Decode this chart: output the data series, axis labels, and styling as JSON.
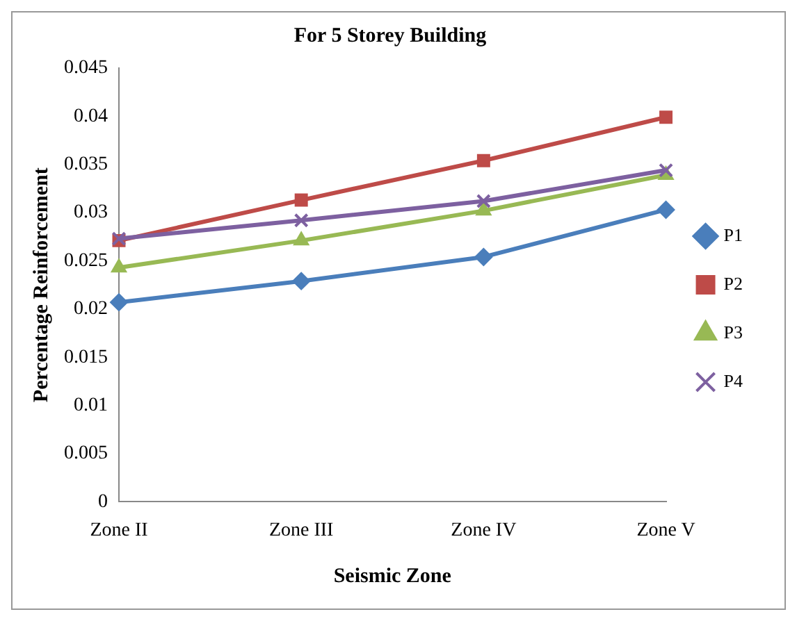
{
  "chart_data": {
    "type": "line",
    "title": "For 5 Storey Building",
    "xlabel": "Seismic Zone",
    "ylabel": "Percentage Reinforcement",
    "categories": [
      "Zone II",
      "Zone III",
      "Zone IV",
      "Zone V"
    ],
    "series": [
      {
        "name": "P1",
        "color": "#4a7ebb",
        "marker": "diamond",
        "values": [
          0.0207,
          0.0229,
          0.0254,
          0.0303
        ]
      },
      {
        "name": "P2",
        "color": "#be4b48",
        "marker": "square",
        "values": [
          0.0271,
          0.0313,
          0.0354,
          0.0399
        ]
      },
      {
        "name": "P3",
        "color": "#98b954",
        "marker": "triangle",
        "values": [
          0.0243,
          0.0271,
          0.0302,
          0.0339
        ]
      },
      {
        "name": "P4",
        "color": "#7d60a0",
        "marker": "cross",
        "values": [
          0.0273,
          0.0292,
          0.0312,
          0.0344
        ]
      }
    ],
    "ylim": [
      0,
      0.045
    ],
    "yticks": [
      0,
      0.005,
      0.01,
      0.015,
      0.02,
      0.025,
      0.03,
      0.035,
      0.04,
      0.045
    ],
    "grid": false,
    "legend": "right"
  }
}
